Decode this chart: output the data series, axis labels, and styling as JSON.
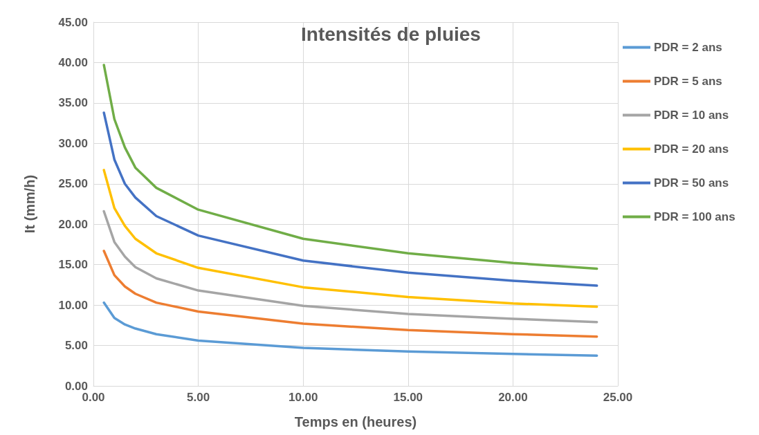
{
  "chart_data": {
    "type": "line",
    "title": "Intensités de pluies",
    "xlabel": "Temps en (heures)",
    "ylabel": "It (mm/h)",
    "x": [
      0.5,
      1,
      1.5,
      2,
      3,
      5,
      10,
      15,
      20,
      24
    ],
    "series": [
      {
        "name": "PDR = 2 ans",
        "color": "#5b9bd5",
        "values": [
          10.3,
          8.4,
          7.6,
          7.1,
          6.4,
          5.6,
          4.7,
          4.25,
          3.95,
          3.75
        ]
      },
      {
        "name": "PDR = 5 ans",
        "color": "#ed7d31",
        "values": [
          16.7,
          13.7,
          12.3,
          11.4,
          10.3,
          9.2,
          7.7,
          6.9,
          6.4,
          6.1
        ]
      },
      {
        "name": "PDR = 10 ans",
        "color": "#a5a5a5",
        "values": [
          21.6,
          17.8,
          16,
          14.7,
          13.3,
          11.8,
          9.9,
          8.9,
          8.3,
          7.9
        ]
      },
      {
        "name": "PDR = 20 ans",
        "color": "#ffc000",
        "values": [
          26.7,
          22,
          19.8,
          18.2,
          16.4,
          14.6,
          12.2,
          11,
          10.2,
          9.8
        ]
      },
      {
        "name": "PDR = 50 ans",
        "color": "#4472c4",
        "values": [
          33.8,
          28,
          25,
          23.3,
          21,
          18.6,
          15.5,
          14,
          13,
          12.4
        ]
      },
      {
        "name": "PDR = 100 ans",
        "color": "#70ad47",
        "values": [
          39.7,
          33,
          29.5,
          27,
          24.5,
          21.8,
          18.2,
          16.4,
          15.2,
          14.5
        ]
      }
    ],
    "xlim": [
      0,
      25
    ],
    "xticks": [
      {
        "value": 0,
        "label": "0.00"
      },
      {
        "value": 5,
        "label": "5.00"
      },
      {
        "value": 10,
        "label": "10.00"
      },
      {
        "value": 15,
        "label": "15.00"
      },
      {
        "value": 20,
        "label": "20.00"
      },
      {
        "value": 25,
        "label": "25.00"
      }
    ],
    "ylim": [
      0,
      45
    ],
    "yticks": [
      {
        "value": 0,
        "label": "0.00"
      },
      {
        "value": 5,
        "label": "5.00"
      },
      {
        "value": 10,
        "label": "10.00"
      },
      {
        "value": 15,
        "label": "15.00"
      },
      {
        "value": 20,
        "label": "20.00"
      },
      {
        "value": 25,
        "label": "25.00"
      },
      {
        "value": 30,
        "label": "30.00"
      },
      {
        "value": 35,
        "label": "35.00"
      },
      {
        "value": 40,
        "label": "40.00"
      },
      {
        "value": 45,
        "label": "45.00"
      }
    ],
    "grid": true,
    "legend": "right",
    "marker": "none",
    "line_style": "solid"
  }
}
